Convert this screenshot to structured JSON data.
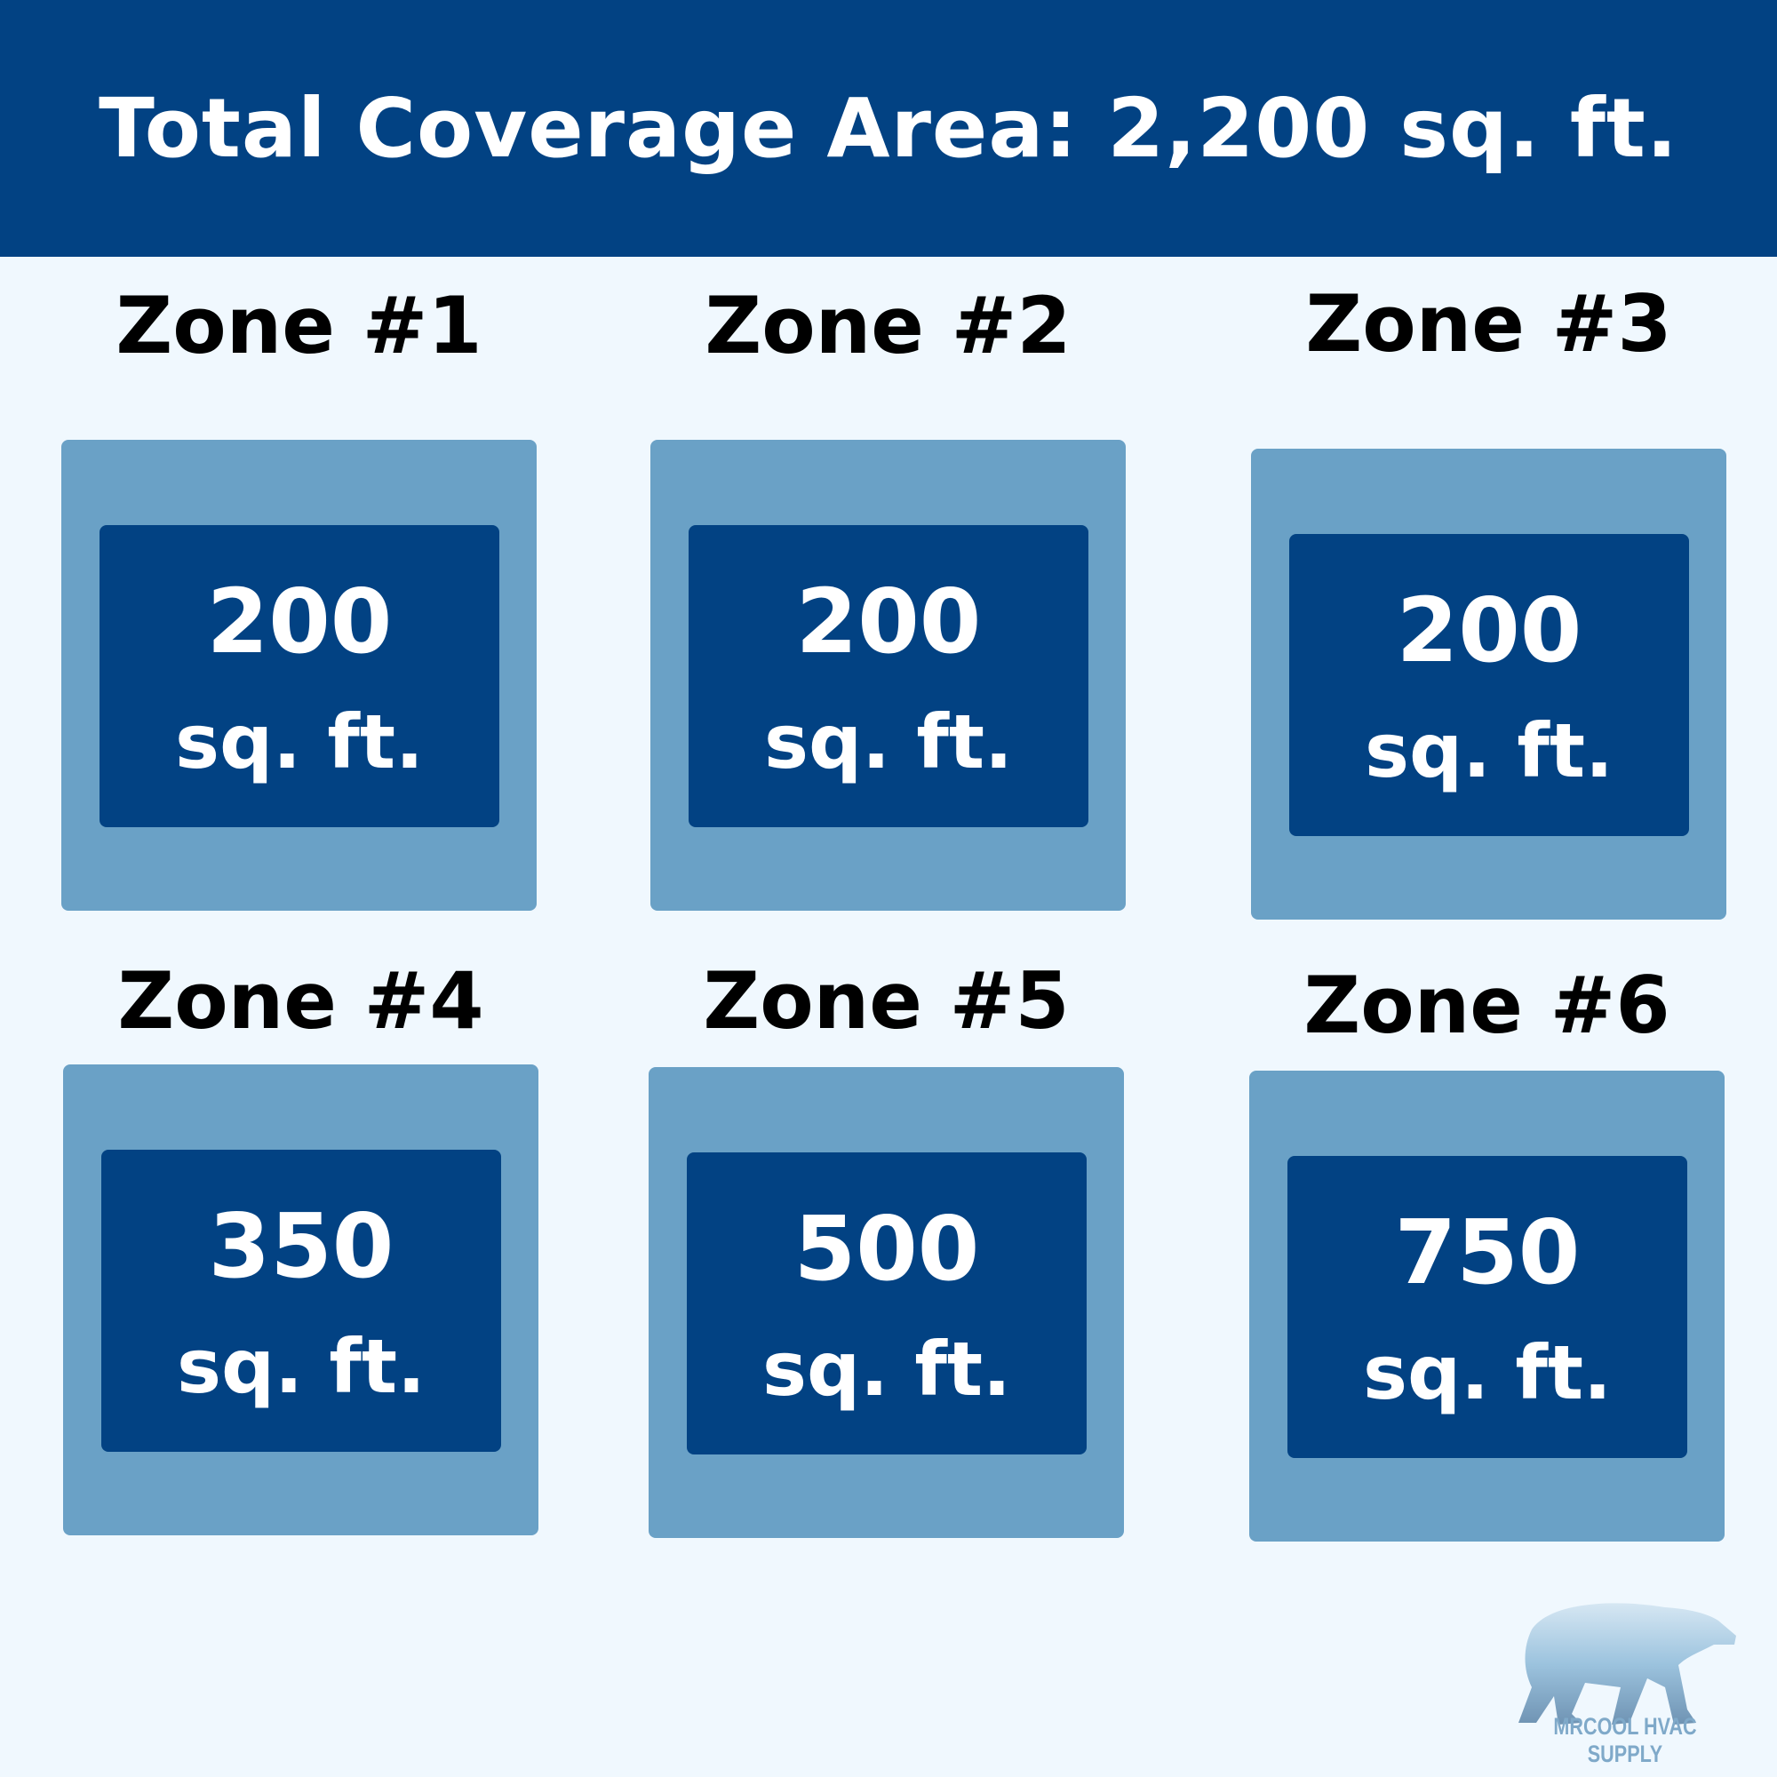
{
  "header": {
    "title": "Total Coverage Area: 2,200 sq. ft."
  },
  "zones": [
    {
      "label": "Zone #1",
      "value": "200",
      "unit": "sq. ft."
    },
    {
      "label": "Zone #2",
      "value": "200",
      "unit": "sq. ft."
    },
    {
      "label": "Zone #3",
      "value": "200",
      "unit": "sq. ft."
    },
    {
      "label": "Zone #4",
      "value": "350",
      "unit": "sq. ft."
    },
    {
      "label": "Zone #5",
      "value": "500",
      "unit": "sq. ft."
    },
    {
      "label": "Zone #6",
      "value": "750",
      "unit": "sq. ft."
    }
  ],
  "logo": {
    "text": "MRCOOL HVAC SUPPLY",
    "icon": "polar-bear-icon"
  },
  "colors": {
    "header": "#024283",
    "outer_box": "#6aa1c6",
    "inner_box": "#024283",
    "background": "#f0f8fe"
  }
}
